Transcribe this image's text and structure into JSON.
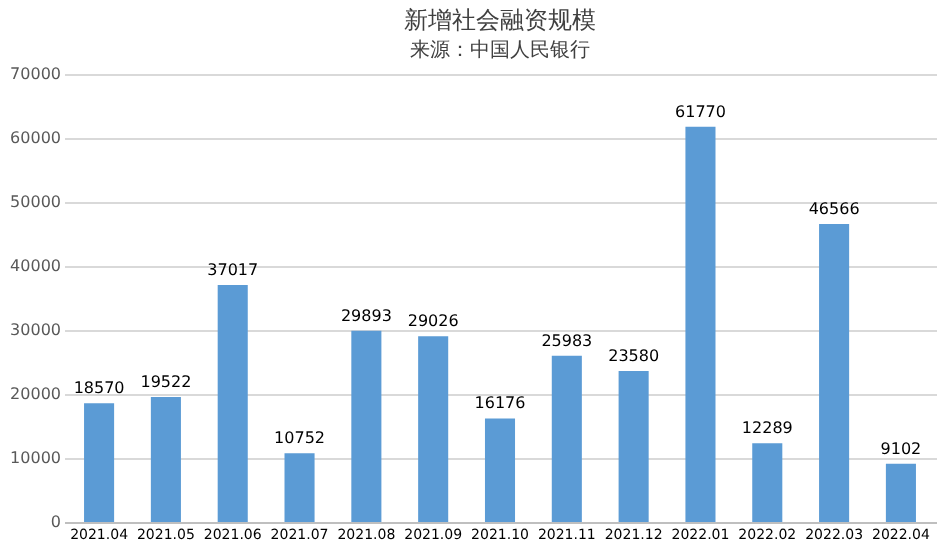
{
  "chart_data": {
    "type": "bar",
    "title": "新增社会融资规模",
    "subtitle": "来源：中国人民银行",
    "categories": [
      "2021.04",
      "2021.05",
      "2021.06",
      "2021.07",
      "2021.08",
      "2021.09",
      "2021.10",
      "2021.11",
      "2021.12",
      "2022.01",
      "2022.02",
      "2022.03",
      "2022.04"
    ],
    "values": [
      18570,
      19522,
      37017,
      10752,
      29893,
      29026,
      16176,
      25983,
      23580,
      61770,
      12289,
      46566,
      9102
    ],
    "color": "#5b9bd5",
    "ylim": [
      0,
      70000
    ],
    "yticks": [
      0,
      10000,
      20000,
      30000,
      40000,
      50000,
      60000,
      70000
    ],
    "grid": "y",
    "data_labels": true
  }
}
